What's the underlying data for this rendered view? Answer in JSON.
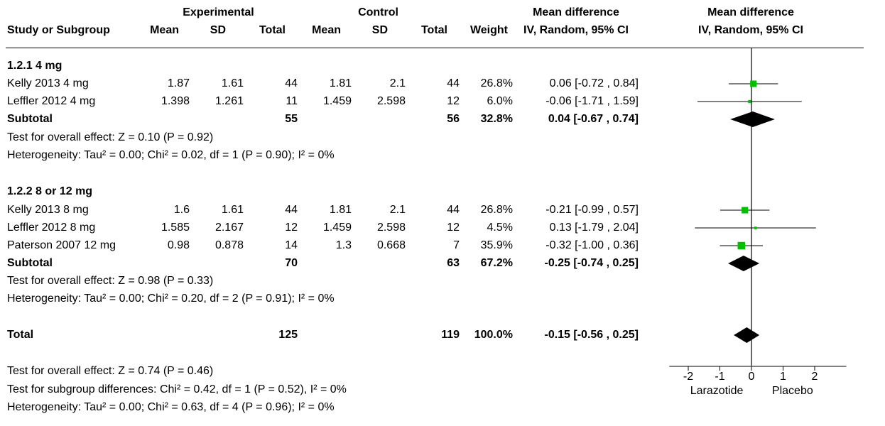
{
  "header": {
    "group_experimental": "Experimental",
    "group_control": "Control",
    "group_md": "Mean difference",
    "group_md_plot": "Mean difference",
    "col_study": "Study or Subgroup",
    "col_mean": "Mean",
    "col_sd": "SD",
    "col_total": "Total",
    "col_weight": "Weight",
    "col_ci": "IV, Random, 95% CI",
    "col_ci_plot": "IV, Random, 95% CI"
  },
  "subgroups": [
    {
      "title": "1.2.1 4 mg",
      "studies": [
        {
          "name": "Kelly 2013 4 mg",
          "exp_mean": "1.87",
          "exp_sd": "1.61",
          "exp_total": "44",
          "ctl_mean": "1.81",
          "ctl_sd": "2.1",
          "ctl_total": "44",
          "weight": "26.8%",
          "ci": "0.06 [-0.72 , 0.84]"
        },
        {
          "name": "Leffler 2012 4 mg",
          "exp_mean": "1.398",
          "exp_sd": "1.261",
          "exp_total": "11",
          "ctl_mean": "1.459",
          "ctl_sd": "2.598",
          "ctl_total": "12",
          "weight": "6.0%",
          "ci": "-0.06 [-1.71 , 1.59]"
        }
      ],
      "subtotal": {
        "label": "Subtotal",
        "exp_total": "55",
        "ctl_total": "56",
        "weight": "32.8%",
        "ci": "0.04 [-0.67 , 0.74]"
      },
      "overall_effect": "Test for overall effect: Z = 0.10 (P = 0.92)",
      "heterogeneity": "Heterogeneity: Tau² = 0.00; Chi² = 0.02, df = 1 (P = 0.90); I² = 0%"
    },
    {
      "title": "1.2.2 8 or 12 mg",
      "studies": [
        {
          "name": "Kelly 2013 8 mg",
          "exp_mean": "1.6",
          "exp_sd": "1.61",
          "exp_total": "44",
          "ctl_mean": "1.81",
          "ctl_sd": "2.1",
          "ctl_total": "44",
          "weight": "26.8%",
          "ci": "-0.21 [-0.99 , 0.57]"
        },
        {
          "name": "Leffler 2012 8 mg",
          "exp_mean": "1.585",
          "exp_sd": "2.167",
          "exp_total": "12",
          "ctl_mean": "1.459",
          "ctl_sd": "2.598",
          "ctl_total": "12",
          "weight": "4.5%",
          "ci": "0.13 [-1.79 , 2.04]"
        },
        {
          "name": "Paterson 2007 12 mg",
          "exp_mean": "0.98",
          "exp_sd": "0.878",
          "exp_total": "14",
          "ctl_mean": "1.3",
          "ctl_sd": "0.668",
          "ctl_total": "7",
          "weight": "35.9%",
          "ci": "-0.32 [-1.00 , 0.36]"
        }
      ],
      "subtotal": {
        "label": "Subtotal",
        "exp_total": "70",
        "ctl_total": "63",
        "weight": "67.2%",
        "ci": "-0.25 [-0.74 , 0.25]"
      },
      "overall_effect": "Test for overall effect: Z = 0.98 (P = 0.33)",
      "heterogeneity": "Heterogeneity: Tau² = 0.00; Chi² = 0.20, df = 2 (P = 0.91); I² = 0%"
    }
  ],
  "total": {
    "label": "Total",
    "exp_total": "125",
    "ctl_total": "119",
    "weight": "100.0%",
    "ci": "-0.15 [-0.56 , 0.25]"
  },
  "footer": {
    "overall_effect": "Test for overall effect: Z = 0.74 (P = 0.46)",
    "subgroup_diff": "Test for subgroup differences: Chi² = 0.42, df = 1 (P = 0.52), I² = 0%",
    "heterogeneity": "Heterogeneity: Tau² = 0.00; Chi² = 0.63, df = 4 (P = 0.96); I² = 0%"
  },
  "colors": {
    "study_marker": "#00c000",
    "diamond": "#000000",
    "line": "#000000"
  },
  "chart_data": {
    "type": "forest",
    "xlim": [
      -2.6,
      3.0
    ],
    "xticks": [
      -2,
      -1,
      0,
      1,
      2
    ],
    "xtick_labels": [
      "-2",
      "-1",
      "0",
      "1",
      "2"
    ],
    "left_label": "Larazotide",
    "right_label": "Placebo",
    "studies": [
      {
        "name": "Kelly 2013 4 mg",
        "md": 0.06,
        "lo": -0.72,
        "hi": 0.84,
        "weight": 26.8
      },
      {
        "name": "Leffler 2012 4 mg",
        "md": -0.06,
        "lo": -1.71,
        "hi": 1.59,
        "weight": 6.0
      },
      {
        "name": "Kelly 2013 8 mg",
        "md": -0.21,
        "lo": -0.99,
        "hi": 0.57,
        "weight": 26.8
      },
      {
        "name": "Leffler 2012 8 mg",
        "md": 0.13,
        "lo": -1.79,
        "hi": 2.04,
        "weight": 4.5
      },
      {
        "name": "Paterson 2007 12 mg",
        "md": -0.32,
        "lo": -1.0,
        "hi": 0.36,
        "weight": 35.9
      }
    ],
    "pooled": [
      {
        "name": "Subtotal 1.2.1 4 mg",
        "md": 0.04,
        "lo": -0.67,
        "hi": 0.74
      },
      {
        "name": "Subtotal 1.2.2 8 or 12 mg",
        "md": -0.25,
        "lo": -0.74,
        "hi": 0.25
      },
      {
        "name": "Total",
        "md": -0.15,
        "lo": -0.56,
        "hi": 0.25
      }
    ]
  }
}
